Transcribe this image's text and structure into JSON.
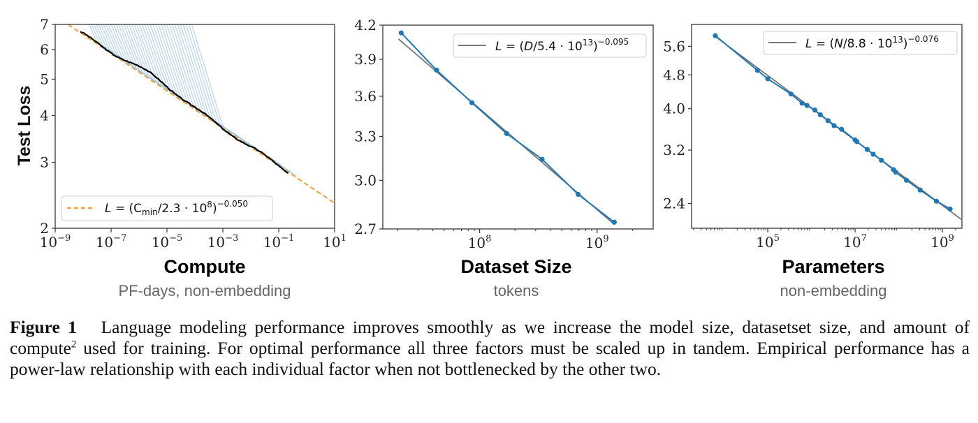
{
  "chart_data": [
    {
      "type": "line",
      "id": "compute",
      "title": "Compute",
      "subtitle": "PF-days, non-embedding",
      "xlabel": "Compute",
      "ylabel": "Test Loss",
      "xscale": "log",
      "yscale": "log",
      "xlim": [
        1e-09,
        10
      ],
      "ylim": [
        2,
        7
      ],
      "x_ticks": [
        {
          "base": "10",
          "exp": "−9",
          "value": 1e-09
        },
        {
          "base": "10",
          "exp": "−7",
          "value": 1e-07
        },
        {
          "base": "10",
          "exp": "−5",
          "value": 1e-05
        },
        {
          "base": "10",
          "exp": "−3",
          "value": 0.001
        },
        {
          "base": "10",
          "exp": "−1",
          "value": 0.1
        },
        {
          "base": "10",
          "exp": "1",
          "value": 10
        }
      ],
      "y_ticks": [
        {
          "label": "2",
          "value": 2
        },
        {
          "label": "3",
          "value": 3
        },
        {
          "label": "4",
          "value": 4
        },
        {
          "label": "5",
          "value": 5
        },
        {
          "label": "6",
          "value": 6
        },
        {
          "label": "7",
          "value": 7
        }
      ],
      "fit": {
        "label_main": "L = (C",
        "label_sub": "min",
        "label_mid": "/2.3 · 10",
        "label_exp1": "8",
        "label_close": ")",
        "label_exp2": "−0.050",
        "scale": 230000000.0,
        "exponent": -0.05,
        "color": "#f0a030",
        "style": "dashed"
      },
      "frontier": {
        "color": "#000000",
        "x_range": [
          8e-09,
          0.22
        ]
      },
      "training_curves": {
        "color": "#a6c8e6",
        "count": 40
      },
      "legend": "lower-left"
    },
    {
      "type": "line",
      "id": "dataset",
      "title": "Dataset Size",
      "subtitle": "tokens",
      "xlabel": "Dataset Size",
      "xscale": "log",
      "yscale": "log",
      "xlim": [
        15000000.0,
        3000000000.0
      ],
      "ylim": [
        2.7,
        4.2
      ],
      "x_ticks": [
        {
          "base": "10",
          "exp": "8",
          "value": 100000000.0
        },
        {
          "base": "10",
          "exp": "9",
          "value": 1000000000.0
        }
      ],
      "y_ticks": [
        {
          "label": "2.7",
          "value": 2.7
        },
        {
          "label": "3.0",
          "value": 3.0
        },
        {
          "label": "3.3",
          "value": 3.3
        },
        {
          "label": "3.6",
          "value": 3.6
        },
        {
          "label": "3.9",
          "value": 3.9
        },
        {
          "label": "4.2",
          "value": 4.2
        }
      ],
      "x": [
        21500000.0,
        43000000.0,
        86000000.0,
        170000000.0,
        340000000.0,
        690000000.0,
        1400000000.0
      ],
      "y": [
        4.13,
        3.81,
        3.55,
        3.32,
        3.14,
        2.91,
        2.74
      ],
      "series_color": "#1f77b4",
      "fit": {
        "label_main": "L = (D/5.4 · 10",
        "label_exp1": "13",
        "label_close": ")",
        "label_exp2": "−0.095",
        "scale": 54000000000000.0,
        "exponent": -0.095,
        "color": "#777777",
        "style": "solid"
      },
      "legend": "top-right"
    },
    {
      "type": "line",
      "id": "parameters",
      "title": "Parameters",
      "subtitle": "non-embedding",
      "xlabel": "Parameters",
      "xscale": "log",
      "yscale": "log",
      "xlim": [
        1800.0,
        2800000000.0
      ],
      "ylim": [
        2.1,
        6.3
      ],
      "x_ticks": [
        {
          "base": "10",
          "exp": "5",
          "value": 100000.0
        },
        {
          "base": "10",
          "exp": "7",
          "value": 10000000.0
        },
        {
          "base": "10",
          "exp": "9",
          "value": 1000000000.0
        }
      ],
      "y_ticks": [
        {
          "label": "2.4",
          "value": 2.4
        },
        {
          "label": "3.2",
          "value": 3.2
        },
        {
          "label": "4.0",
          "value": 4.0
        },
        {
          "label": "4.8",
          "value": 4.8
        },
        {
          "label": "5.6",
          "value": 5.6
        }
      ],
      "x": [
        6300.0,
        58000.0,
        100000.0,
        340000.0,
        610000.0,
        790000.0,
        1200000.0,
        1600000.0,
        2400000.0,
        3300000.0,
        4900000.0,
        10000000.0,
        11000000.0,
        19000000.0,
        26000000.0,
        40000000.0,
        76000000.0,
        85000000.0,
        150000000.0,
        310000000.0,
        730000000.0,
        1500000000.0
      ],
      "y": [
        5.93,
        4.92,
        4.7,
        4.33,
        4.12,
        4.07,
        3.97,
        3.87,
        3.75,
        3.65,
        3.58,
        3.38,
        3.35,
        3.21,
        3.13,
        3.03,
        2.88,
        2.84,
        2.72,
        2.58,
        2.43,
        2.33
      ],
      "series_color": "#1f77b4",
      "fit": {
        "label_main": "L = (N/8.8 · 10",
        "label_exp1": "13",
        "label_close": ")",
        "label_exp2": "−0.076",
        "scale": 88000000000000.0,
        "exponent": -0.076,
        "color": "#777777",
        "style": "solid"
      },
      "legend": "top-right"
    }
  ],
  "caption": {
    "label": "Figure 1",
    "text_before_sup": "Language modeling performance improves smoothly as we increase the model size, datasetset size, and amount of compute",
    "sup": "2",
    "text_after_sup": " used for training. For optimal performance all three factors must be scaled up in tandem. Empirical performance has a power-law relationship with each individual factor when not bottlenecked by the other two."
  }
}
